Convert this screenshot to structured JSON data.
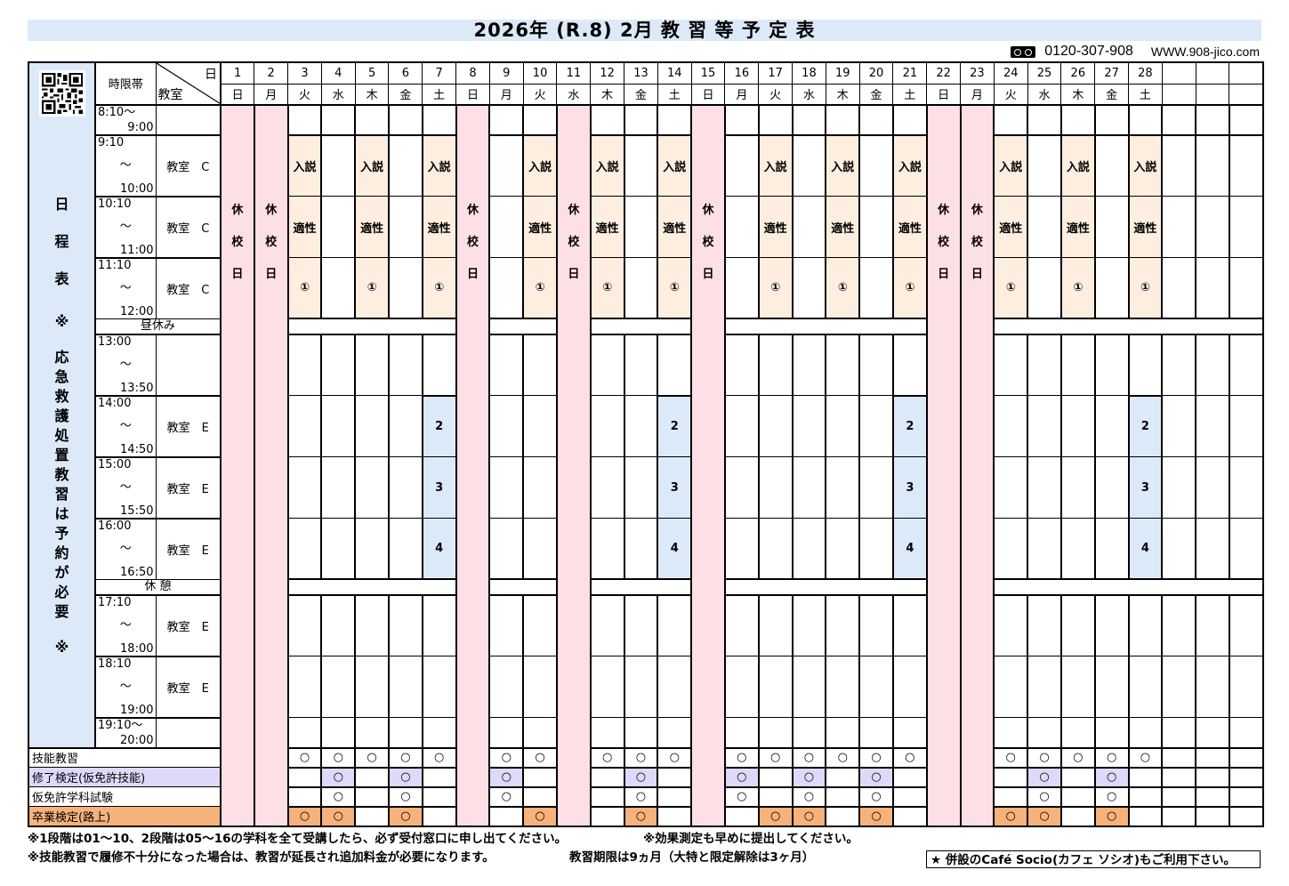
{
  "header": {
    "title": "2026年 (R.8)  2月  教 習 等 予 定 表",
    "phone_icon": "freedial-icon",
    "phone": "0120-307-908",
    "website": "WWW.908-jico.com"
  },
  "table": {
    "corner": {
      "time_header": "時限帯",
      "day_label": "日",
      "room_label": "教室"
    },
    "side_panel": {
      "qr_icon": "qr-code-icon",
      "label_top": [
        "日",
        "程",
        "表"
      ],
      "label_note": [
        "※",
        "応",
        "急",
        "救",
        "護",
        "処",
        "置",
        "教",
        "習",
        "は",
        "予",
        "約",
        "が",
        "必",
        "要",
        "※"
      ]
    },
    "days": [
      {
        "num": "1",
        "dow": "日"
      },
      {
        "num": "2",
        "dow": "月"
      },
      {
        "num": "3",
        "dow": "火"
      },
      {
        "num": "4",
        "dow": "水"
      },
      {
        "num": "5",
        "dow": "木"
      },
      {
        "num": "6",
        "dow": "金"
      },
      {
        "num": "7",
        "dow": "土"
      },
      {
        "num": "8",
        "dow": "日"
      },
      {
        "num": "9",
        "dow": "月"
      },
      {
        "num": "10",
        "dow": "火"
      },
      {
        "num": "11",
        "dow": "水"
      },
      {
        "num": "12",
        "dow": "木"
      },
      {
        "num": "13",
        "dow": "金"
      },
      {
        "num": "14",
        "dow": "土"
      },
      {
        "num": "15",
        "dow": "日"
      },
      {
        "num": "16",
        "dow": "月"
      },
      {
        "num": "17",
        "dow": "火"
      },
      {
        "num": "18",
        "dow": "水"
      },
      {
        "num": "19",
        "dow": "木"
      },
      {
        "num": "20",
        "dow": "金"
      },
      {
        "num": "21",
        "dow": "土"
      },
      {
        "num": "22",
        "dow": "日"
      },
      {
        "num": "23",
        "dow": "月"
      },
      {
        "num": "24",
        "dow": "火"
      },
      {
        "num": "25",
        "dow": "水"
      },
      {
        "num": "26",
        "dow": "木"
      },
      {
        "num": "27",
        "dow": "金"
      },
      {
        "num": "28",
        "dow": "土"
      },
      {
        "num": "",
        "dow": ""
      },
      {
        "num": "",
        "dow": ""
      },
      {
        "num": "",
        "dow": ""
      }
    ],
    "holiday_days": [
      1,
      2,
      8,
      11,
      15,
      22,
      23
    ],
    "holiday_label": [
      "休",
      "校",
      "日"
    ],
    "periods": [
      {
        "start": "8:10～",
        "mid": "",
        "end": "9:00",
        "room": "",
        "compact": true
      },
      {
        "start": "9:10",
        "mid": "～",
        "end": "10:00",
        "room": "教室　C"
      },
      {
        "start": "10:10",
        "mid": "～",
        "end": "11:00",
        "room": "教室　C"
      },
      {
        "start": "11:10",
        "mid": "～",
        "end": "12:00",
        "room": "教室　C"
      },
      {
        "break": "昼休み"
      },
      {
        "start": "13:00",
        "mid": "～",
        "end": "13:50",
        "room": ""
      },
      {
        "start": "14:00",
        "mid": "～",
        "end": "14:50",
        "room": "教室　E"
      },
      {
        "start": "15:00",
        "mid": "～",
        "end": "15:50",
        "room": "教室　E"
      },
      {
        "start": "16:00",
        "mid": "～",
        "end": "16:50",
        "room": "教室　E"
      },
      {
        "break": "休 憩"
      },
      {
        "start": "17:10",
        "mid": "～",
        "end": "18:00",
        "room": "教室　E"
      },
      {
        "start": "18:10",
        "mid": "～",
        "end": "19:00",
        "room": "教室　E"
      },
      {
        "start": "19:10～",
        "mid": "",
        "end": "20:00",
        "room": "",
        "compact": true
      }
    ],
    "morning_class_days": [
      3,
      5,
      7,
      10,
      12,
      14,
      17,
      19,
      21,
      24,
      26,
      28
    ],
    "morning_class_labels": [
      "入説",
      "適性",
      "①"
    ],
    "afternoon_class_days": [
      7,
      14,
      21,
      28
    ],
    "afternoon_class_labels": [
      "2",
      "3",
      "4"
    ],
    "bottom_rows": [
      {
        "label": "技能教習",
        "style": "plain",
        "mark": "○",
        "days": [
          3,
          4,
          5,
          6,
          7,
          9,
          10,
          12,
          13,
          14,
          16,
          17,
          18,
          19,
          20,
          21,
          24,
          25,
          26,
          27,
          28
        ]
      },
      {
        "label": "修了検定(仮免許技能)",
        "style": "purple",
        "mark": "○",
        "days": [
          4,
          6,
          9,
          13,
          16,
          18,
          20,
          25,
          27
        ]
      },
      {
        "label": "仮免許学科試験",
        "style": "plain",
        "mark": "○",
        "days": [
          4,
          6,
          9,
          13,
          16,
          18,
          20,
          25,
          27
        ]
      },
      {
        "label": "卒業検定(路上)",
        "style": "orange",
        "mark": "○",
        "days": [
          3,
          4,
          6,
          10,
          13,
          17,
          18,
          20,
          24,
          25,
          27
        ]
      }
    ]
  },
  "notes": {
    "line1a": "※1段階は01～10、2段階は05～16の学科を全て受講したら、必ず受付窓口に申し出てください。",
    "line1b": "※効果測定も早めに提出してください。",
    "line2a": "※技能教習で履修不十分になった場合は、教習が延長され追加料金が必要になります。",
    "line2b": "教習期限は9ヵ月（大特と限定解除は3ヶ月）",
    "cafe": "★ 併設のCafé Socio(カフェ ソシオ)もご利用下さい。"
  },
  "colors": {
    "title_bg": "#dce9f9",
    "holiday": "#fde0e6",
    "morning_class": "#fdeee0",
    "afternoon_class": "#dce9f9",
    "purple": "#e0d8fa",
    "orange": "#f6b27b"
  }
}
